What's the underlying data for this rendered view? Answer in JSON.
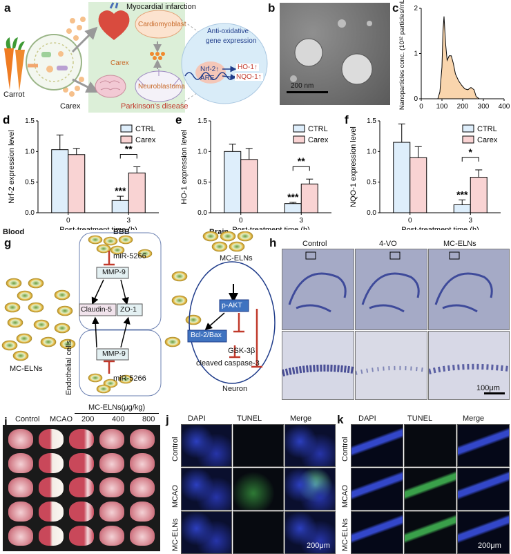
{
  "panels": {
    "a": {
      "label": "a",
      "carrot": "Carrot",
      "carex": "Carex",
      "myocardial": "Myocardial infarction",
      "cardiomyoblast": "Cardiomyoblast",
      "carex_center": "Carex",
      "neuroblastoma": "Neuroblastoma",
      "parkinsons": "Parkinson's disease",
      "antioxidative_1": "Anti-oxidative",
      "antioxidative_2": "gene expression",
      "nrf2": "Nrf-2↑",
      "are": "ARE",
      "ho1": "HO-1↑",
      "nqo1": "NQO-1↑"
    },
    "b": {
      "label": "b",
      "scale": "200 nm"
    },
    "c": {
      "label": "c"
    },
    "g": {
      "label": "g",
      "blood": "Blood",
      "bbb": "BBB",
      "brain": "Brain",
      "mir_top": "miR-5266",
      "mmp9_top": "MMP-9",
      "claudin": "Claudin-5",
      "zo1": "ZO-1",
      "mmp9_bottom": "MMP-9",
      "mir_bottom": "miR-5266",
      "endothelial": "Endothelial cells",
      "mcelns_left": "MC-ELNs",
      "mcelns_right": "MC-ELNs",
      "pakt": "p-AKT",
      "bcl2": "Bcl-2/Bax",
      "gsk": "GSK-3β",
      "caspase": "cleaved caspase-3",
      "neuron": "Neuron"
    },
    "h": {
      "label": "h",
      "cols": [
        "Control",
        "4-VO",
        "MC-ELNs"
      ],
      "scale": "100μm"
    },
    "i": {
      "label": "i",
      "dose_header": "MC-ELNs(μg/kg)",
      "cols": [
        "Control",
        "MCAO",
        "200",
        "400",
        "800"
      ]
    },
    "j": {
      "label": "j",
      "cols": [
        "DAPI",
        "TUNEL",
        "Merge"
      ],
      "rows": [
        "Control",
        "MCAO",
        "MC-ELNs"
      ],
      "scale": "200μm"
    },
    "k": {
      "label": "k",
      "cols": [
        "DAPI",
        "TUNEL",
        "Merge"
      ],
      "rows": [
        "Control",
        "MCAO",
        "MC-ELNs"
      ],
      "scale": "200μm"
    }
  },
  "chart_data": [
    {
      "id": "c",
      "type": "area",
      "xlabel": "",
      "ylabel": "Nanoparticles conc. (10¹² particles/mL)",
      "xlim": [
        0,
        400
      ],
      "ylim": [
        0,
        2
      ],
      "xticks": [
        0,
        100,
        200,
        300,
        400
      ],
      "yticks": [
        0,
        1,
        2
      ],
      "fill": "#f9d5ad",
      "x": [
        80,
        90,
        100,
        105,
        110,
        118,
        125,
        135,
        145,
        155,
        165,
        180,
        195,
        210,
        225,
        240,
        255,
        265,
        280
      ],
      "y": [
        0,
        0.15,
        0.7,
        1.5,
        1.82,
        1.2,
        0.85,
        0.95,
        0.95,
        0.78,
        0.55,
        0.4,
        0.3,
        0.22,
        0.2,
        0.25,
        0.2,
        0.05,
        0
      ]
    },
    {
      "id": "d",
      "type": "bar",
      "panel_label": "d",
      "categories": [
        "0",
        "3"
      ],
      "xlabel": "Post-treatment time (h)",
      "ylabel": "Nrf-2 expression level",
      "ylim": [
        0,
        1.5
      ],
      "yticks": [
        0.0,
        0.5,
        1.0,
        1.5
      ],
      "series": [
        {
          "name": "CTRL",
          "values": [
            1.03,
            0.2
          ],
          "errors": [
            0.24,
            0.07
          ],
          "color": "#deeefb"
        },
        {
          "name": "Carex",
          "values": [
            0.95,
            0.65
          ],
          "errors": [
            0.1,
            0.1
          ],
          "color": "#f9d3d3"
        }
      ],
      "annotations": {
        "stars_low": "***",
        "bracket": "**"
      }
    },
    {
      "id": "e",
      "type": "bar",
      "panel_label": "e",
      "categories": [
        "0",
        "3"
      ],
      "xlabel": "Post-treatment time (h)",
      "ylabel": "HO-1 expression level",
      "ylim": [
        0,
        1.5
      ],
      "yticks": [
        0.0,
        0.5,
        1.0,
        1.5
      ],
      "series": [
        {
          "name": "CTRL",
          "values": [
            1.0,
            0.15
          ],
          "errors": [
            0.12,
            0.02
          ],
          "color": "#deeefb"
        },
        {
          "name": "Carex",
          "values": [
            0.87,
            0.47
          ],
          "errors": [
            0.18,
            0.08
          ],
          "color": "#f9d3d3"
        }
      ],
      "annotations": {
        "stars_low": "***",
        "bracket": "**"
      }
    },
    {
      "id": "f",
      "type": "bar",
      "panel_label": "f",
      "categories": [
        "0",
        "3"
      ],
      "xlabel": "Post-treatment time (h)",
      "ylabel": "NQO-1 expression level",
      "ylim": [
        0,
        1.5
      ],
      "yticks": [
        0.0,
        0.5,
        1.0,
        1.5
      ],
      "series": [
        {
          "name": "CTRL",
          "values": [
            1.15,
            0.13
          ],
          "errors": [
            0.3,
            0.08
          ],
          "color": "#deeefb"
        },
        {
          "name": "Carex",
          "values": [
            0.9,
            0.58
          ],
          "errors": [
            0.18,
            0.12
          ],
          "color": "#f9d3d3"
        }
      ],
      "annotations": {
        "stars_low": "***",
        "bracket": "*"
      }
    }
  ]
}
